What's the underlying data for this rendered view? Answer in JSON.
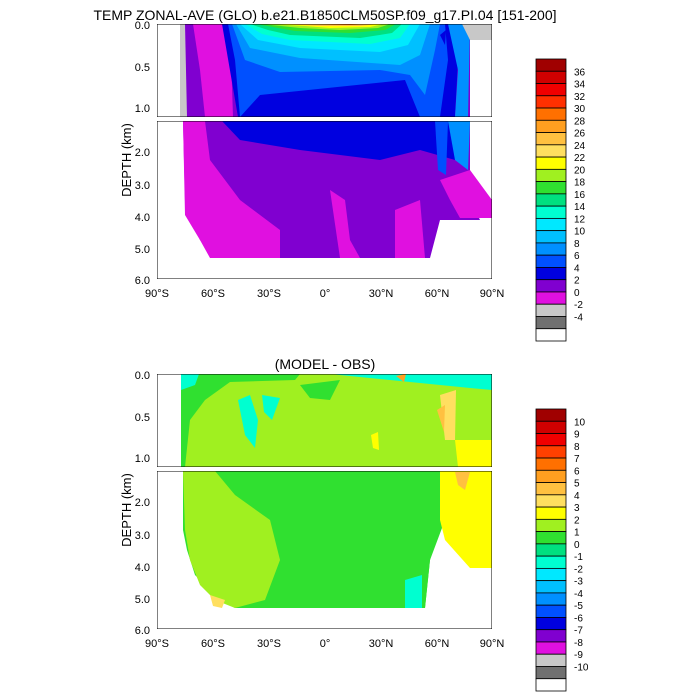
{
  "chart_data": [
    {
      "type": "heatmap",
      "title": "TEMP ZONAL-AVE (GLO) b.e21.B1850CLM50SP.f09_g17.PI.04 [151-200]",
      "ylabel": "DEPTH (km)",
      "x_ticks": [
        "90°S",
        "60°S",
        "30°S",
        "0°",
        "30°N",
        "60°N",
        "90°N"
      ],
      "x_values": [
        -90,
        -60,
        -30,
        0,
        30,
        60,
        90
      ],
      "upper_y_ticks": [
        "0.0",
        "0.5",
        "1.0"
      ],
      "lower_y_ticks": [
        "2.0",
        "3.0",
        "4.0",
        "5.0",
        "6.0"
      ],
      "upper_depth_range_km": [
        0,
        1.1
      ],
      "lower_depth_range_km": [
        1.1,
        6.0
      ],
      "colorbar_labels": [
        "36",
        "34",
        "32",
        "30",
        "28",
        "26",
        "24",
        "22",
        "20",
        "18",
        "16",
        "14",
        "12",
        "10",
        "8",
        "6",
        "4",
        "2",
        "0",
        "-2",
        "-4"
      ],
      "colorbar_colors": [
        "#a00000",
        "#d00000",
        "#f00000",
        "#ff3000",
        "#ff7000",
        "#ff9f20",
        "#ffc040",
        "#ffdf60",
        "#ffff00",
        "#a0f020",
        "#30e030",
        "#00e080",
        "#00ffd0",
        "#00e8ff",
        "#00c0ff",
        "#0090ff",
        "#0050ff",
        "#0000e0",
        "#8000d0",
        "#e010e0",
        "#c8c8c8",
        "#707070",
        "#ffffff"
      ]
    },
    {
      "type": "heatmap",
      "title": "(MODEL - OBS)",
      "ylabel": "DEPTH (km)",
      "x_ticks": [
        "90°S",
        "60°S",
        "30°S",
        "0°",
        "30°N",
        "60°N",
        "90°N"
      ],
      "x_values": [
        -90,
        -60,
        -30,
        0,
        30,
        60,
        90
      ],
      "upper_y_ticks": [
        "0.0",
        "0.5",
        "1.0"
      ],
      "lower_y_ticks": [
        "2.0",
        "3.0",
        "4.0",
        "5.0",
        "6.0"
      ],
      "upper_depth_range_km": [
        0,
        1.1
      ],
      "lower_depth_range_km": [
        1.1,
        6.0
      ],
      "colorbar_labels": [
        "10",
        "9",
        "8",
        "7",
        "6",
        "5",
        "4",
        "3",
        "2",
        "1",
        "0",
        "-1",
        "-2",
        "-3",
        "-4",
        "-5",
        "-6",
        "-7",
        "-8",
        "-9",
        "-10"
      ],
      "colorbar_colors": [
        "#a00000",
        "#d00000",
        "#f00000",
        "#ff4000",
        "#ff7000",
        "#ff9f20",
        "#ffc040",
        "#ffdf60",
        "#ffff00",
        "#a0f020",
        "#30e030",
        "#00e080",
        "#00ffd0",
        "#00e8ff",
        "#00c0ff",
        "#0090ff",
        "#0050ff",
        "#0000e0",
        "#8000d0",
        "#e010e0",
        "#c8c8c8",
        "#707070",
        "#ffffff"
      ]
    }
  ]
}
